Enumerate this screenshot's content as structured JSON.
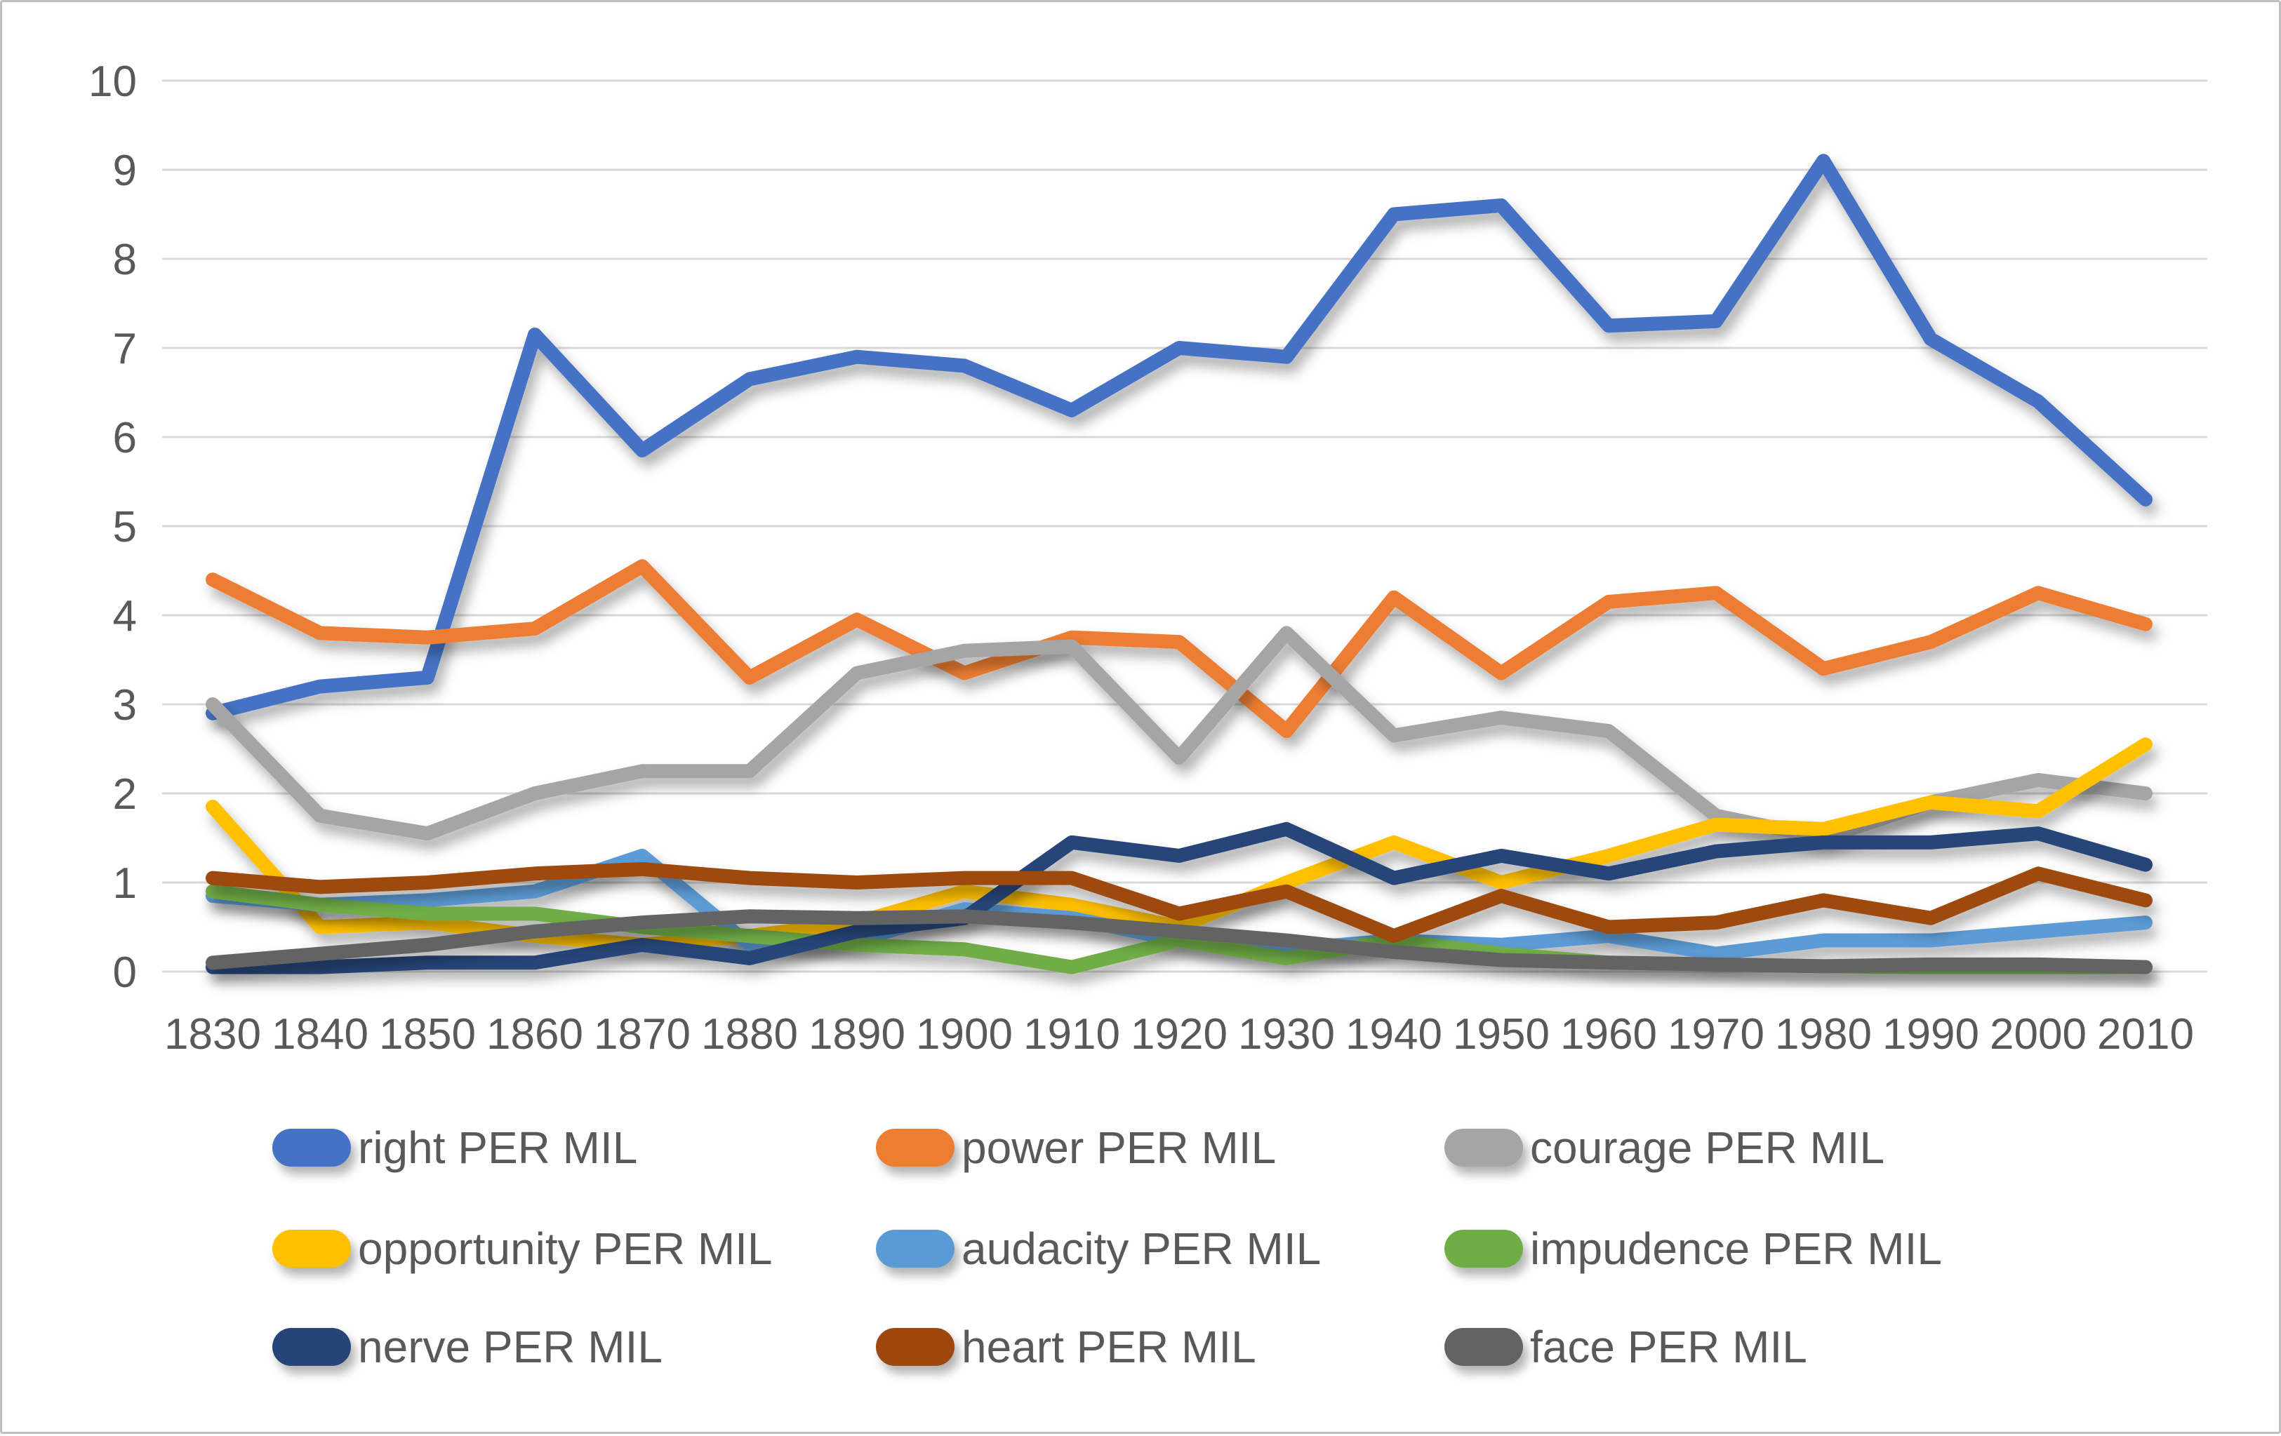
{
  "chart_data": {
    "type": "line",
    "title": "",
    "xlabel": "",
    "ylabel": "",
    "ylim": [
      0,
      10
    ],
    "grid": true,
    "legend_position": "bottom",
    "gridline_color": "#d9d9d9",
    "axis_text_color": "#595959",
    "frame_border_color": "#bfbfbf",
    "yticks": [
      "0",
      "1",
      "2",
      "3",
      "4",
      "5",
      "6",
      "7",
      "8",
      "9",
      "10"
    ],
    "categories": [
      "1830",
      "1840",
      "1850",
      "1860",
      "1870",
      "1880",
      "1890",
      "1900",
      "1910",
      "1920",
      "1930",
      "1940",
      "1950",
      "1960",
      "1970",
      "1980",
      "1990",
      "2000",
      "2010"
    ],
    "series": [
      {
        "name": "right PER MIL",
        "color": "#4472c4",
        "values": [
          2.9,
          3.2,
          3.3,
          7.15,
          5.85,
          6.65,
          6.9,
          6.8,
          6.3,
          7.0,
          6.9,
          8.5,
          8.6,
          7.25,
          7.3,
          9.1,
          7.1,
          6.4,
          5.3
        ]
      },
      {
        "name": "power PER MIL",
        "color": "#ed7d31",
        "values": [
          4.4,
          3.8,
          3.75,
          3.85,
          4.55,
          3.3,
          3.95,
          3.35,
          3.75,
          3.7,
          2.7,
          4.2,
          3.35,
          4.15,
          4.25,
          3.4,
          3.7,
          4.25,
          3.9
        ]
      },
      {
        "name": "courage PER MIL",
        "color": "#a5a5a5",
        "values": [
          3.0,
          1.75,
          1.55,
          2.0,
          2.25,
          2.25,
          3.35,
          3.6,
          3.65,
          2.4,
          3.8,
          2.65,
          2.85,
          2.7,
          1.75,
          1.5,
          1.9,
          2.15,
          2.0
        ]
      },
      {
        "name": "opportunity PER MIL",
        "color": "#ffc000",
        "values": [
          1.85,
          0.5,
          0.55,
          0.4,
          0.3,
          0.4,
          0.55,
          0.9,
          0.75,
          0.5,
          1.0,
          1.45,
          1.0,
          1.3,
          1.65,
          1.6,
          1.9,
          1.8,
          2.55
        ]
      },
      {
        "name": "audacity PER MIL",
        "color": "#5b9bd5",
        "values": [
          0.85,
          0.75,
          0.8,
          0.9,
          1.3,
          0.3,
          0.35,
          0.7,
          0.6,
          0.35,
          0.25,
          0.35,
          0.3,
          0.4,
          0.2,
          0.35,
          0.35,
          0.45,
          0.55
        ]
      },
      {
        "name": "impudence PER MIL",
        "color": "#70ad47",
        "values": [
          0.9,
          0.75,
          0.65,
          0.65,
          0.5,
          0.4,
          0.3,
          0.25,
          0.05,
          0.35,
          0.15,
          0.35,
          0.2,
          0.1,
          0.08,
          0.06,
          0.05,
          0.05,
          0.05
        ]
      },
      {
        "name": "nerve PER MIL",
        "color": "#264478",
        "values": [
          0.05,
          0.05,
          0.1,
          0.1,
          0.3,
          0.15,
          0.45,
          0.6,
          1.45,
          1.3,
          1.6,
          1.05,
          1.3,
          1.1,
          1.35,
          1.45,
          1.45,
          1.55,
          1.2
        ]
      },
      {
        "name": "heart PER MIL",
        "color": "#9e480e",
        "values": [
          1.05,
          0.95,
          1.0,
          1.1,
          1.15,
          1.05,
          1.0,
          1.05,
          1.05,
          0.65,
          0.9,
          0.4,
          0.85,
          0.5,
          0.55,
          0.8,
          0.6,
          1.1,
          0.8
        ]
      },
      {
        "name": "face PER MIL",
        "color": "#636363",
        "values": [
          0.1,
          0.2,
          0.3,
          0.45,
          0.55,
          0.62,
          0.6,
          0.62,
          0.55,
          0.45,
          0.35,
          0.22,
          0.13,
          0.1,
          0.08,
          0.06,
          0.08,
          0.08,
          0.05
        ]
      }
    ]
  }
}
